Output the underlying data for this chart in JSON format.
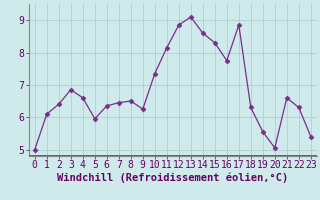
{
  "x": [
    0,
    1,
    2,
    3,
    4,
    5,
    6,
    7,
    8,
    9,
    10,
    11,
    12,
    13,
    14,
    15,
    16,
    17,
    18,
    19,
    20,
    21,
    22,
    23
  ],
  "y": [
    5.0,
    6.1,
    6.4,
    6.85,
    6.6,
    5.95,
    6.35,
    6.45,
    6.5,
    6.25,
    7.35,
    8.15,
    8.85,
    9.1,
    8.6,
    8.3,
    7.75,
    8.85,
    6.3,
    5.55,
    5.05,
    6.6,
    6.3,
    5.4
  ],
  "line_color": "#7b2d8b",
  "marker": "D",
  "marker_size": 2.5,
  "bg_color": "#ceeaea",
  "grid_color": "#aed0d0",
  "xlabel": "Windchill (Refroidissement éolien,°C)",
  "xlabel_fontsize": 7.5,
  "tick_fontsize": 7,
  "ylim": [
    4.8,
    9.5
  ],
  "yticks": [
    5,
    6,
    7,
    8,
    9
  ],
  "xticks": [
    0,
    1,
    2,
    3,
    4,
    5,
    6,
    7,
    8,
    9,
    10,
    11,
    12,
    13,
    14,
    15,
    16,
    17,
    18,
    19,
    20,
    21,
    22,
    23
  ],
  "axis_label_color": "#660066",
  "tick_color": "#660066",
  "spine_color": "#888888"
}
